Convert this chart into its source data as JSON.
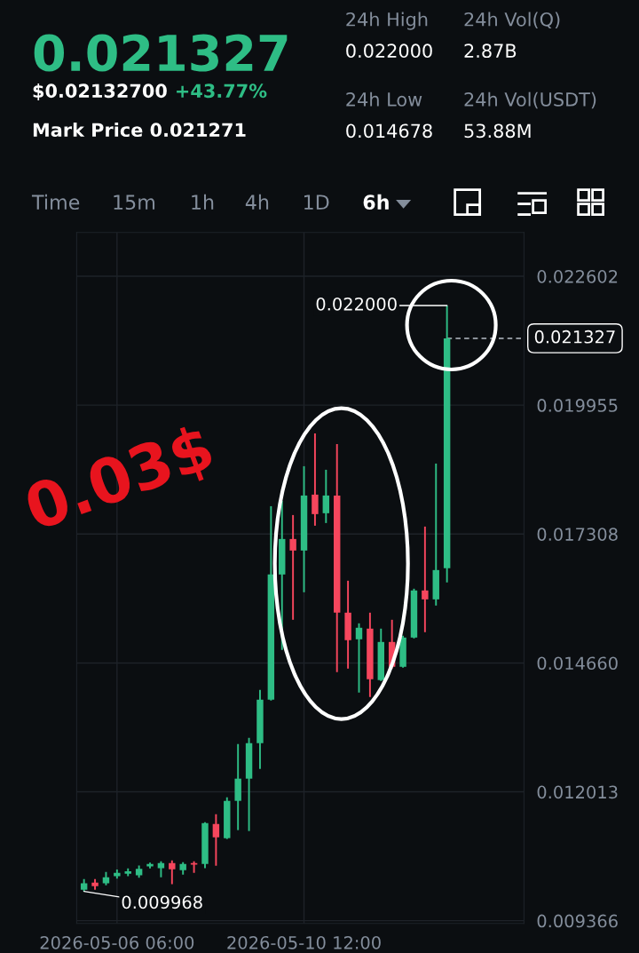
{
  "chart_data": {
    "type": "candlestick",
    "title": "0.021327",
    "annotations": [
      "$0.02132700",
      "+43.77%",
      "Mark Price 0.021271",
      "24h High",
      "0.022000",
      "24h Vol(Q)",
      "2.87B",
      "24h Low",
      "0.014678",
      "24h Vol(USDT)",
      "53.88M",
      "Time",
      "15m",
      "1h",
      "4h",
      "1D",
      "6h",
      "0.03$",
      {
        "text": "0.022000",
        "x": "2026-05-13T18:00",
        "y": 0.022
      },
      {
        "text": "0.009968",
        "x": "2026-05-05T12:00",
        "y": 0.009968
      }
    ],
    "x": [
      "2026-05-05T12:00",
      "2026-05-05T18:00",
      "2026-05-06T00:00",
      "2026-05-06T06:00",
      "2026-05-06T12:00",
      "2026-05-06T18:00",
      "2026-05-07T00:00",
      "2026-05-07T06:00",
      "2026-05-07T12:00",
      "2026-05-07T18:00",
      "2026-05-08T00:00",
      "2026-05-08T06:00",
      "2026-05-08T12:00",
      "2026-05-08T18:00",
      "2026-05-09T00:00",
      "2026-05-09T06:00",
      "2026-05-09T12:00",
      "2026-05-09T18:00",
      "2026-05-10T00:00",
      "2026-05-10T06:00",
      "2026-05-10T12:00",
      "2026-05-10T18:00",
      "2026-05-11T00:00",
      "2026-05-11T06:00",
      "2026-05-11T12:00",
      "2026-05-11T18:00",
      "2026-05-12T00:00",
      "2026-05-12T06:00",
      "2026-05-12T12:00",
      "2026-05-12T18:00",
      "2026-05-13T00:00",
      "2026-05-13T06:00",
      "2026-05-13T12:00",
      "2026-05-13T18:00"
    ],
    "ohlc": [
      [
        0.010005,
        0.010224,
        0.009968,
        0.010133
      ],
      [
        0.010151,
        0.010224,
        0.010005,
        0.010078
      ],
      [
        0.010133,
        0.01037,
        0.010096,
        0.01026
      ],
      [
        0.01028,
        0.01042,
        0.01023,
        0.01035
      ],
      [
        0.01033,
        0.01044,
        0.01028,
        0.01038
      ],
      [
        0.0103,
        0.0105,
        0.01025,
        0.01043
      ],
      [
        0.01048,
        0.01056,
        0.01044,
        0.01053
      ],
      [
        0.010443,
        0.010588,
        0.01026,
        0.010552
      ],
      [
        0.010552,
        0.010607,
        0.010115,
        0.010424
      ],
      [
        0.010406,
        0.01057,
        0.010315,
        0.010534
      ],
      [
        0.010552,
        0.010588,
        0.010351,
        0.010516
      ],
      [
        0.010534,
        0.011391,
        0.010443,
        0.011372
      ],
      [
        0.011354,
        0.011555,
        0.010497,
        0.011081
      ],
      [
        0.011063,
        0.011901,
        0.011044,
        0.011828
      ],
      [
        0.011828,
        0.012995,
        0.011227,
        0.012284
      ],
      [
        0.012284,
        0.013122,
        0.011208,
        0.013013
      ],
      [
        0.013013,
        0.014107,
        0.012484,
        0.013906
      ],
      [
        0.013906,
        0.01788,
        0.013888,
        0.016477
      ],
      [
        0.016477,
        0.01799,
        0.014927,
        0.017206
      ],
      [
        0.017206,
        0.017698,
        0.015547,
        0.016969
      ],
      [
        0.016969,
        0.018701,
        0.016112,
        0.018099
      ],
      [
        0.018117,
        0.019375,
        0.017479,
        0.017717
      ],
      [
        0.017735,
        0.018628,
        0.017534,
        0.018099
      ],
      [
        0.018099,
        0.019157,
        0.014471,
        0.015693
      ],
      [
        0.015693,
        0.016349,
        0.014544,
        0.015128
      ],
      [
        0.015146,
        0.015474,
        0.014052,
        0.015383
      ],
      [
        0.015365,
        0.015693,
        0.013961,
        0.014326
      ],
      [
        0.014308,
        0.015365,
        0.014289,
        0.015091
      ],
      [
        0.015091,
        0.015547,
        0.014544,
        0.014581
      ],
      [
        0.014581,
        0.015219,
        0.014563,
        0.015182
      ],
      [
        0.015182,
        0.016185,
        0.015164,
        0.016149
      ],
      [
        0.016149,
        0.017461,
        0.015292,
        0.015966
      ],
      [
        0.015966,
        0.018755,
        0.015839,
        0.016568
      ],
      [
        0.016604,
        0.022,
        0.016313,
        0.021327
      ]
    ],
    "xlim": [
      "2026-05-05T08:00",
      "2026-05-15T12:00"
    ],
    "xticks": [
      {
        "value": "2026-05-06T06:00",
        "label": "2026-05-06 06:00"
      },
      {
        "value": "2026-05-10T12:00",
        "label": "2026-05-10 12:00"
      }
    ],
    "ylim": [
      0.00931,
      0.0235
    ],
    "yticks": [
      {
        "value": 0.009366,
        "label": "0.009366"
      },
      {
        "value": 0.012013,
        "label": "0.012013"
      },
      {
        "value": 0.01466,
        "label": "0.014660"
      },
      {
        "value": 0.017308,
        "label": "0.017308"
      },
      {
        "value": 0.019955,
        "label": "0.019955"
      },
      {
        "value": 0.022602,
        "label": "0.022602"
      }
    ],
    "ref_lines": [
      {
        "axis": "y",
        "value": 0.021327,
        "label": "0.021327",
        "line_style": "dashed",
        "color": "#b7bdc6"
      }
    ],
    "grid": true
  }
}
